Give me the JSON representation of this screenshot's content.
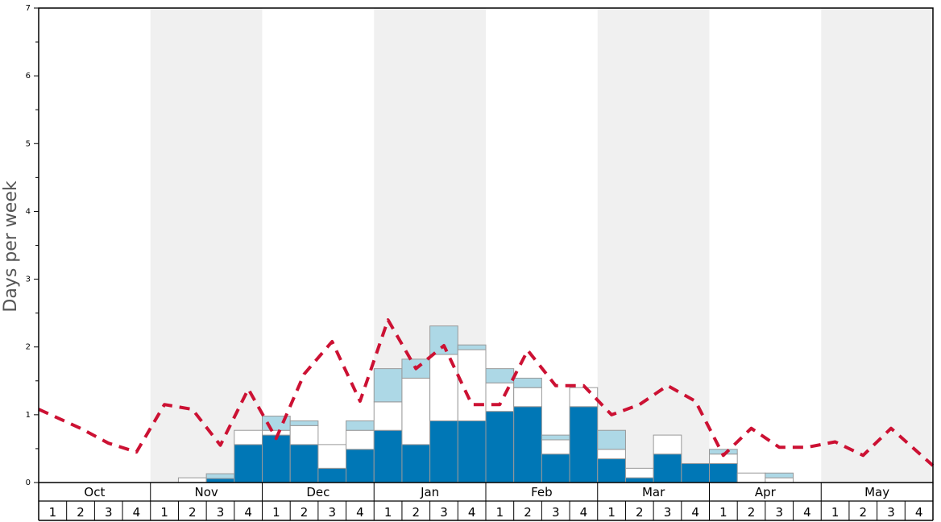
{
  "chart_data": {
    "type": "bar",
    "ylabel": "Days per week",
    "ylim": [
      0,
      7
    ],
    "yticks": [
      "0",
      "1",
      "2",
      "3",
      "4",
      "5",
      "6",
      "7"
    ],
    "months": [
      "Oct",
      "Nov",
      "Dec",
      "Jan",
      "Feb",
      "Mar",
      "Apr",
      "May"
    ],
    "weeks": [
      "1",
      "2",
      "3",
      "4"
    ],
    "colors": {
      "dark": "#0077b6",
      "white": "#ffffff",
      "light": "#add8e6",
      "bar_stroke": "#999999",
      "line": "#cc1133",
      "shade": "#f0f0f0"
    },
    "series": [
      {
        "style": "dark",
        "values": [
          0,
          0,
          0,
          0,
          0,
          0,
          0.06,
          0.56,
          0.7,
          0.56,
          0.21,
          0.49,
          0.77,
          0.56,
          0.91,
          0.91,
          1.05,
          1.12,
          0.42,
          1.12,
          0.35,
          0.07,
          0.42,
          0.28,
          0.28,
          0,
          0,
          0,
          0,
          0,
          0,
          0
        ]
      },
      {
        "style": "white",
        "values": [
          0,
          0,
          0,
          0,
          0,
          0.07,
          0,
          0.21,
          0.07,
          0.28,
          0.35,
          0.28,
          0.42,
          0.98,
          0.98,
          1.05,
          0.42,
          0.28,
          0.21,
          0.28,
          0.14,
          0.14,
          0.28,
          0,
          0.14,
          0.14,
          0.07,
          0,
          0,
          0,
          0,
          0
        ]
      },
      {
        "style": "light",
        "values": [
          0,
          0,
          0,
          0,
          0,
          0,
          0.07,
          0,
          0.21,
          0.07,
          0,
          0.14,
          0.49,
          0.28,
          0.42,
          0.07,
          0.21,
          0.14,
          0.07,
          0,
          0.28,
          0,
          0,
          0,
          0.07,
          0,
          0.07,
          0,
          0,
          0,
          0,
          0
        ]
      },
      {
        "style": "line",
        "values": [
          1.08,
          0.8,
          0.58,
          0.45,
          1.15,
          1.08,
          0.55,
          1.38,
          0.65,
          1.6,
          2.08,
          1.2,
          2.4,
          1.68,
          2.02,
          1.15,
          1.15,
          1.95,
          1.43,
          1.43,
          1.0,
          1.15,
          1.43,
          1.2,
          0.4,
          0.8,
          0.52,
          0.52,
          0.6,
          0.4,
          0.8,
          0.25
        ]
      }
    ]
  }
}
